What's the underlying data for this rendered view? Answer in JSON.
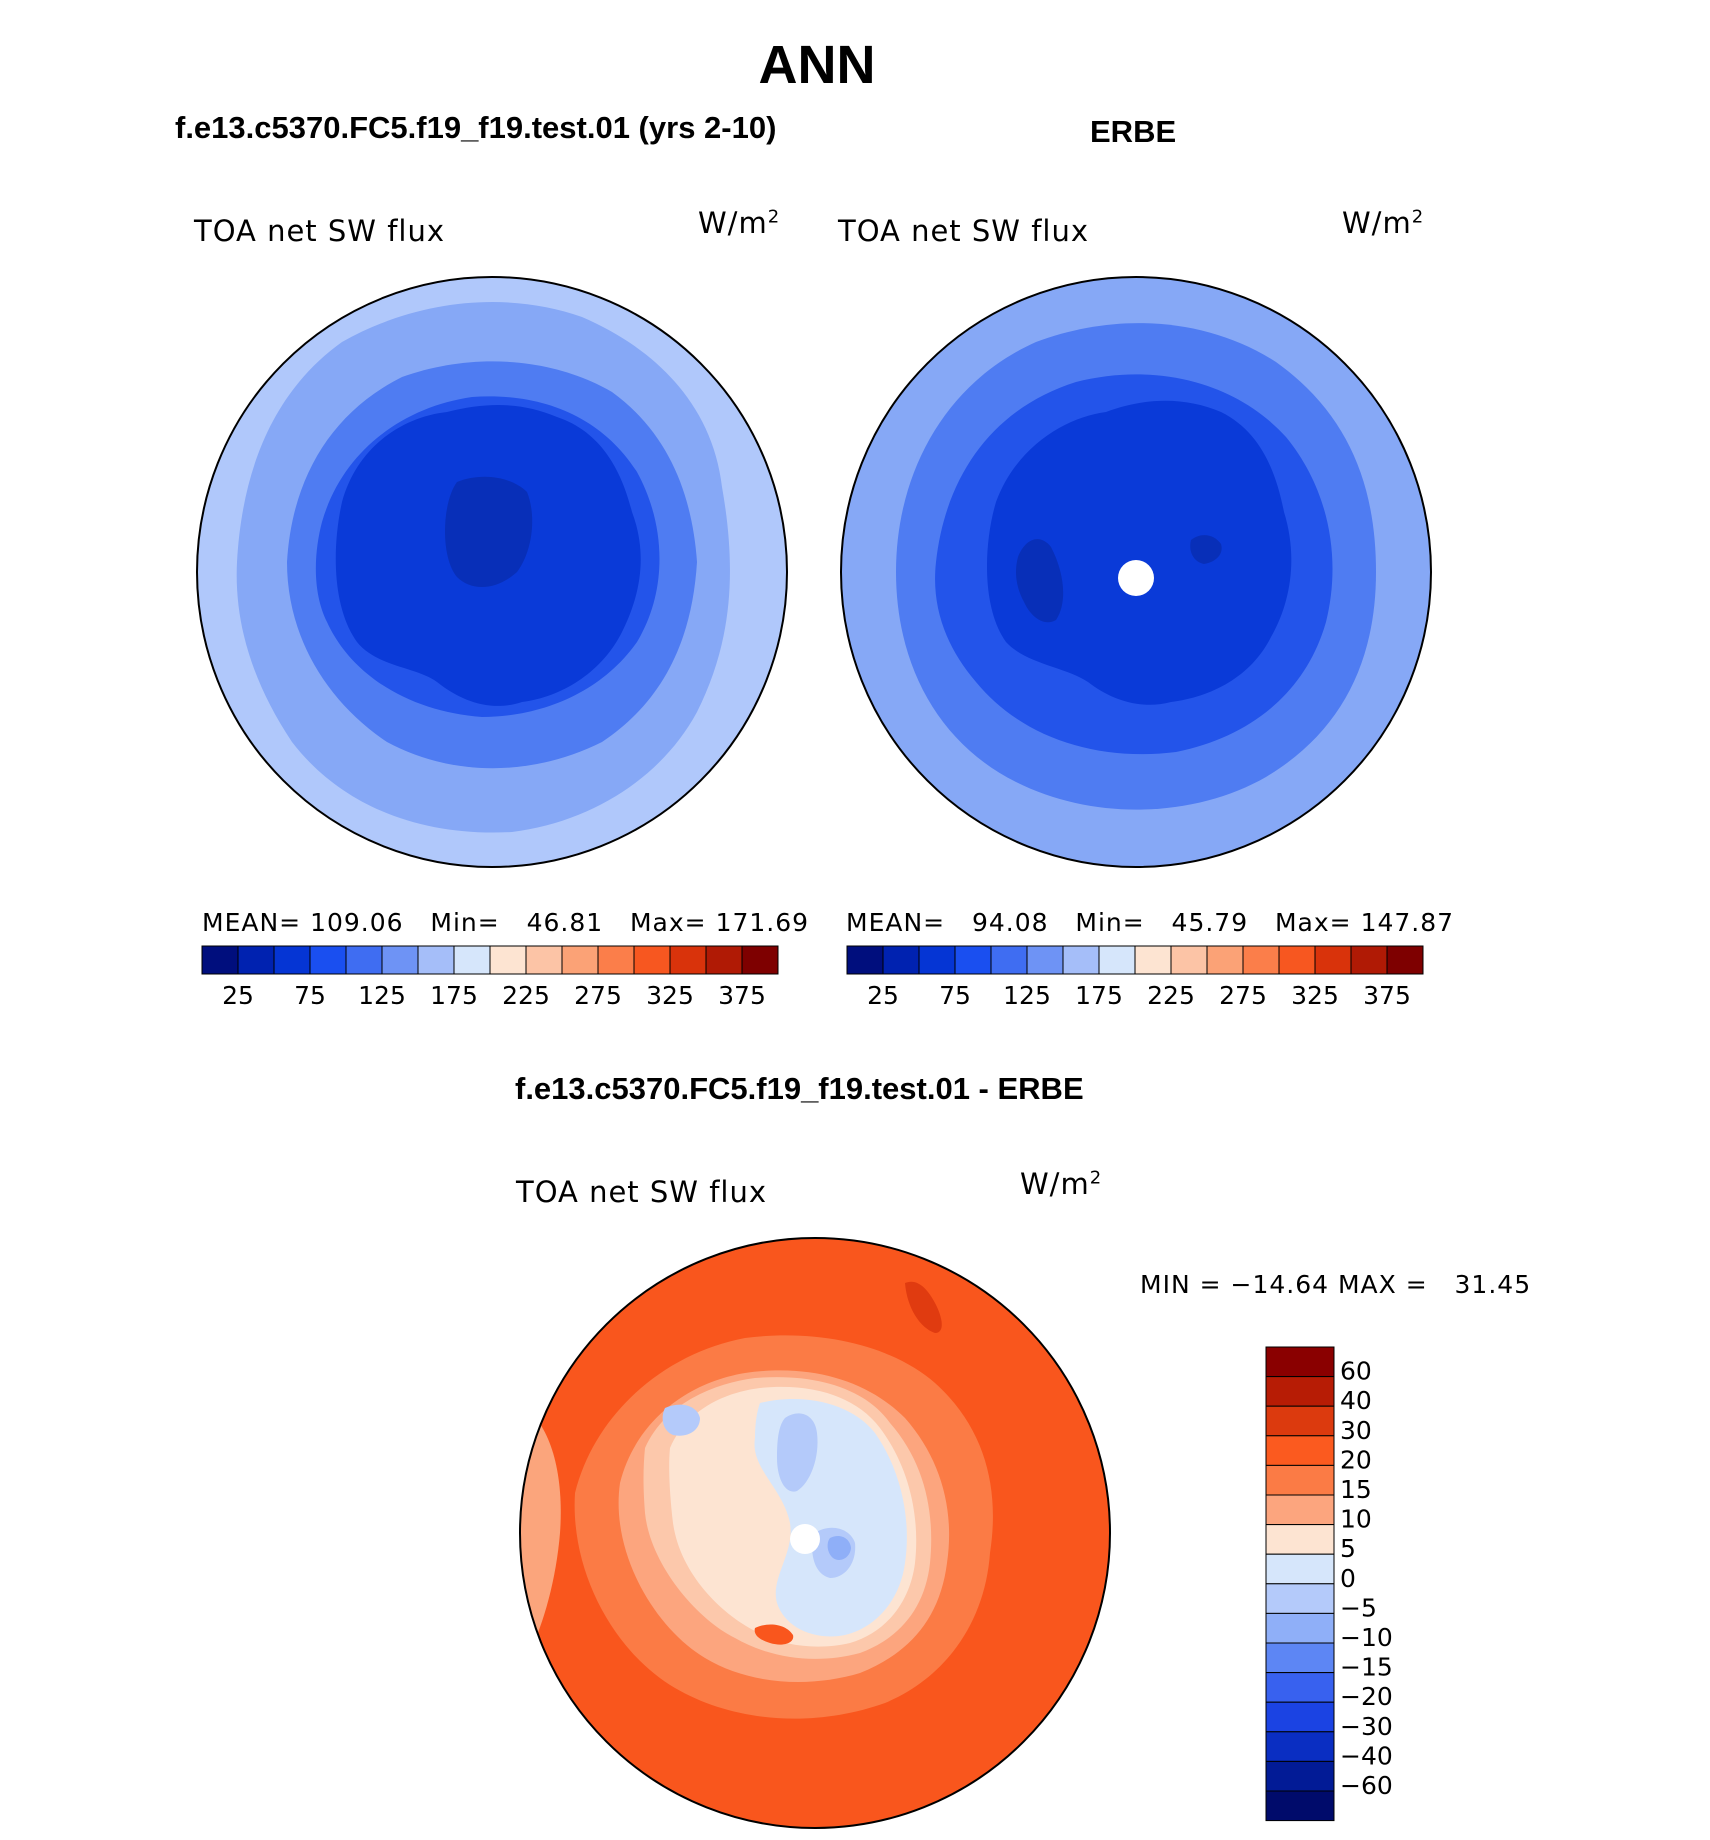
{
  "page": {
    "title": "ANN",
    "panel_titles": [
      "f.e13.c5370.FC5.f19_f19.test.01 (yrs 2-10)",
      "ERBE"
    ],
    "diff_title": "f.e13.c5370.FC5.f19_f19.test.01 - ERBE"
  },
  "chart_data": [
    {
      "type": "heatmap",
      "projection": "south-polar-stereographic",
      "title": "f.e13.c5370.FC5.f19_f19.test.01 (yrs 2-10)",
      "variable": "TOA net SW flux",
      "units_base": "W/m",
      "units_exp": "2",
      "stats": {
        "mean_label": "MEAN=",
        "mean": "109.06",
        "min_label": "Min=",
        "min": "46.81",
        "max_label": "Max=",
        "max": "171.69"
      },
      "colorbar": {
        "colors": [
          "#000e7d",
          "#0022b0",
          "#0535d4",
          "#1a4ff0",
          "#3f6df2",
          "#6e93f5",
          "#a5bef9",
          "#d6e6fb",
          "#fde4d2",
          "#fcc4a6",
          "#fba276",
          "#fb7e4a",
          "#f75720",
          "#d9330b",
          "#b01a05",
          "#7e0000"
        ],
        "tick_labels": [
          "25",
          "75",
          "125",
          "175",
          "225",
          "275",
          "325",
          "375"
        ]
      }
    },
    {
      "type": "heatmap",
      "projection": "south-polar-stereographic",
      "title": "ERBE",
      "variable": "TOA net SW flux",
      "units_base": "W/m",
      "units_exp": "2",
      "stats": {
        "mean_label": "MEAN=",
        "mean": "94.08",
        "min_label": "Min=",
        "min": "45.79",
        "max_label": "Max=",
        "max": "147.87"
      },
      "colorbar": {
        "colors": [
          "#000e7d",
          "#0022b0",
          "#0535d4",
          "#1a4ff0",
          "#3f6df2",
          "#6e93f5",
          "#a5bef9",
          "#d6e6fb",
          "#fde4d2",
          "#fcc4a6",
          "#fba276",
          "#fb7e4a",
          "#f75720",
          "#d9330b",
          "#b01a05",
          "#7e0000"
        ],
        "tick_labels": [
          "25",
          "75",
          "125",
          "175",
          "225",
          "275",
          "325",
          "375"
        ]
      }
    },
    {
      "type": "heatmap",
      "projection": "south-polar-stereographic",
      "title": "f.e13.c5370.FC5.f19_f19.test.01 - ERBE",
      "variable": "TOA net SW flux",
      "units_base": "W/m",
      "units_exp": "2",
      "stats": {
        "min_label": "MIN =",
        "min": "−14.64",
        "max_label": "MAX =",
        "max": "31.45"
      },
      "colorbar": {
        "colors": [
          "#8a0000",
          "#b71c05",
          "#dc3a0e",
          "#fb5a1f",
          "#fb7b45",
          "#fca57e",
          "#fde4d2",
          "#d6e6fb",
          "#b4cafa",
          "#8faff8",
          "#5d86f4",
          "#3861ef",
          "#1b43e3",
          "#0a2ec2",
          "#021b96",
          "#000b6b"
        ],
        "tick_labels": [
          "60",
          "40",
          "30",
          "20",
          "15",
          "10",
          "5",
          "0",
          "−5",
          "−10",
          "−15",
          "−20",
          "−30",
          "−40",
          "−60"
        ]
      }
    }
  ]
}
